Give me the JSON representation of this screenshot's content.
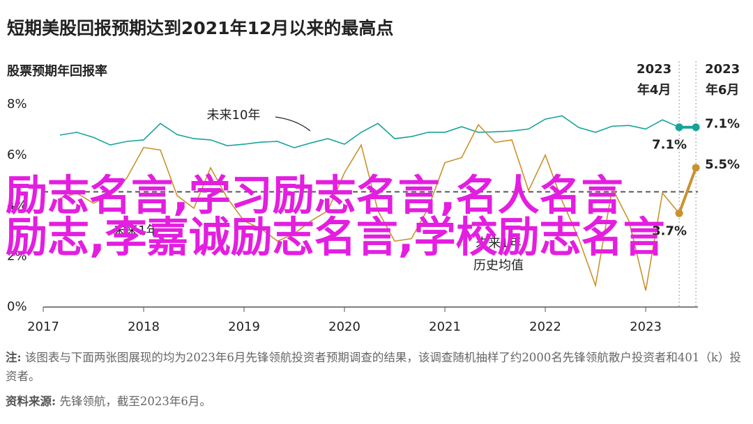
{
  "chart_data": {
    "type": "line",
    "title": "短期美股回报预期达到2021年12月以来的最高点",
    "subtitle": "股票预期年回报率",
    "x": [
      2017.1667,
      2017.3333,
      2017.5,
      2017.6667,
      2017.8333,
      2018,
      2018.1667,
      2018.3333,
      2018.5,
      2018.6667,
      2018.8333,
      2019,
      2019.1667,
      2019.3333,
      2019.5,
      2019.6667,
      2019.8333,
      2020,
      2020.1667,
      2020.3333,
      2020.5,
      2020.6667,
      2020.8333,
      2021,
      2021.1667,
      2021.3333,
      2021.5,
      2021.6667,
      2021.8333,
      2022,
      2022.1667,
      2022.3333,
      2022.5,
      2022.6667,
      2022.8333,
      2023,
      2023.1667,
      2023.3333,
      2023.5
    ],
    "xlim": [
      2017,
      2023.52
    ],
    "xticks": [
      2017,
      2018,
      2019,
      2020,
      2021,
      2022,
      2023
    ],
    "ylim": [
      0,
      8
    ],
    "yticks": [
      {
        "value": 0,
        "label": "0%"
      },
      {
        "value": 2,
        "label": "2%"
      },
      {
        "value": 4,
        "label": "4%"
      },
      {
        "value": 6,
        "label": "6%"
      },
      {
        "value": 8,
        "label": "8%"
      }
    ],
    "series": [
      {
        "name": "未来10年",
        "color": "#17a39a",
        "values": [
          6.79,
          6.9,
          6.7,
          6.4,
          6.54,
          6.6,
          7.25,
          6.81,
          6.65,
          6.6,
          6.37,
          6.43,
          6.51,
          6.54,
          6.29,
          6.48,
          6.65,
          6.43,
          6.9,
          7.25,
          6.65,
          6.73,
          6.9,
          6.9,
          7.12,
          6.9,
          6.92,
          6.95,
          7.03,
          7.42,
          7.55,
          7.09,
          6.9,
          7.14,
          7.17,
          7.03,
          7.39,
          7.1,
          7.1
        ],
        "value_labels": [
          null,
          null,
          null,
          null,
          null,
          null,
          null,
          null,
          null,
          null,
          null,
          null,
          null,
          null,
          null,
          null,
          null,
          null,
          null,
          null,
          null,
          null,
          null,
          null,
          null,
          null,
          null,
          null,
          null,
          null,
          null,
          null,
          null,
          null,
          null,
          null,
          null,
          "7.1%",
          "7.1%"
        ]
      },
      {
        "name": "未来1年",
        "color": "#c8922e",
        "values": [
          4.3,
          4.5,
          4.1,
          4.4,
          5.1,
          6.3,
          6.2,
          4.4,
          3.9,
          5.5,
          4.3,
          3.4,
          3.1,
          2.6,
          2.9,
          3.4,
          3.8,
          5.3,
          6.4,
          3.8,
          2.6,
          2.7,
          3.9,
          5.7,
          5.9,
          7.2,
          6.5,
          6.6,
          4.6,
          6.0,
          4.2,
          2.7,
          0.85,
          4.7,
          3.4,
          0.65,
          4.5,
          3.7,
          5.5
        ],
        "value_labels": [
          null,
          null,
          null,
          null,
          null,
          null,
          null,
          null,
          null,
          null,
          null,
          null,
          null,
          null,
          null,
          null,
          null,
          null,
          null,
          null,
          null,
          null,
          null,
          null,
          null,
          null,
          null,
          null,
          null,
          null,
          null,
          null,
          null,
          null,
          null,
          null,
          null,
          "3.7%",
          "5.5%"
        ]
      }
    ],
    "reference_line": {
      "value": 4.55,
      "label": [
        "未来1年",
        "历史均值"
      ]
    },
    "highlight_x_labels": [
      [
        "2023",
        "年4月"
      ],
      [
        "2023",
        "年6月"
      ]
    ],
    "note": {
      "label": "注:",
      "text": "该图表与下面两张图展现的均为2023年6月先锋领航投资者预期调查的结果，该调查随机抽样了约2000名先锋领航散户投资者和401（k）投资者。"
    },
    "source": {
      "label": "资料来源:",
      "text": "先锋领航，截至2023年6月。"
    }
  },
  "watermark": {
    "lines": [
      "励志名言,学习励志名言,名人名言",
      "励志,李嘉诚励志名言,学校励志名言"
    ]
  }
}
